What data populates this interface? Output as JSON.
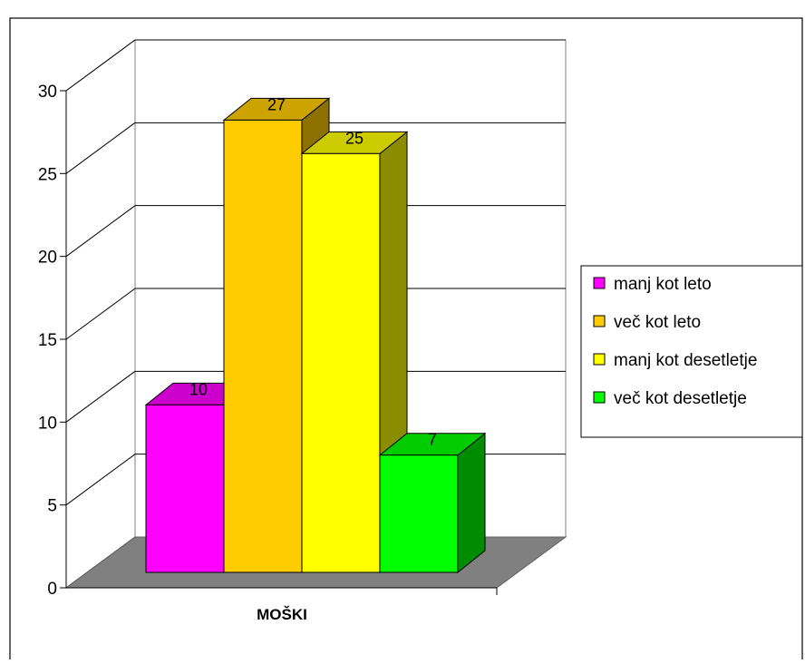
{
  "chart_data": {
    "type": "bar",
    "title": "",
    "categories": [
      "MOŠKI"
    ],
    "series": [
      {
        "name": "manj kot leto",
        "values": [
          10
        ],
        "color": "#ff00ff"
      },
      {
        "name": "več kot leto",
        "values": [
          27
        ],
        "color": "#ffcc00"
      },
      {
        "name": "manj kot desetletje",
        "values": [
          25
        ],
        "color": "#ffff00"
      },
      {
        "name": "več kot desetletje",
        "values": [
          7
        ],
        "color": "#00ff00"
      }
    ],
    "data_labels": [
      "10",
      "27",
      "25",
      "7"
    ],
    "yticks": [
      "0",
      "5",
      "10",
      "15",
      "20",
      "25",
      "30"
    ],
    "ylim": [
      0,
      30
    ],
    "xlabel": "",
    "ylabel": "",
    "legend_position": "right",
    "grid": true,
    "style": "3d-clustered-column",
    "floor_color": "#808080"
  }
}
